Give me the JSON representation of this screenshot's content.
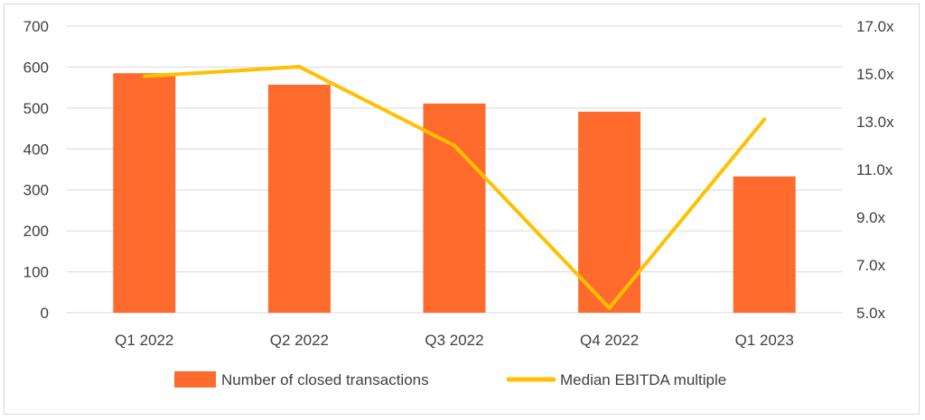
{
  "chart_data": {
    "type": "bar",
    "categories": [
      "Q1 2022",
      "Q2 2022",
      "Q3 2022",
      "Q4 2022",
      "Q1 2023"
    ],
    "series": [
      {
        "name": "Number of closed transactions",
        "type": "bar",
        "axis": "left",
        "color": "#FF6B2C",
        "values": [
          585,
          557,
          511,
          491,
          333
        ]
      },
      {
        "name": "Median EBITDA multiple",
        "type": "line",
        "axis": "right",
        "color": "#FFC000",
        "values": [
          14.9,
          15.3,
          12.0,
          5.2,
          13.1
        ]
      }
    ],
    "y_left": {
      "min": 0,
      "max": 700,
      "ticks": [
        0,
        100,
        200,
        300,
        400,
        500,
        600,
        700
      ],
      "tick_labels": [
        "0",
        "100",
        "200",
        "300",
        "400",
        "500",
        "600",
        "700"
      ]
    },
    "y_right": {
      "min": 5.0,
      "max": 17.0,
      "ticks": [
        5,
        7,
        9,
        11,
        13,
        15,
        17
      ],
      "tick_labels": [
        "5.0x",
        "7.0x",
        "9.0x",
        "11.0x",
        "13.0x",
        "15.0x",
        "17.0x"
      ]
    },
    "grid": true,
    "legend": "bottom",
    "title": "",
    "xlabel": "",
    "ylabel": ""
  }
}
